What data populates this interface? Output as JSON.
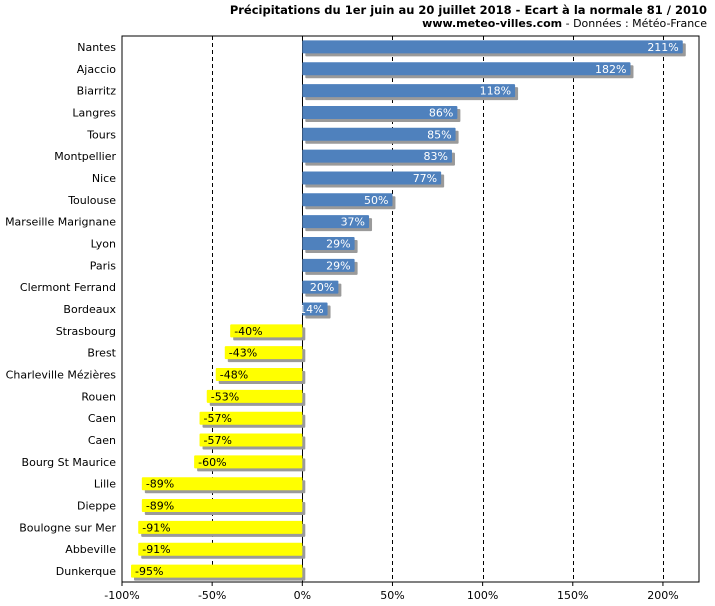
{
  "header": {
    "title": "Précipitations du 1er juin au 20 juillet 2018 - Ecart à la normale 81 / 2010",
    "site": "www.meteo-villes.com",
    "source": " - Données : Météo-France"
  },
  "chart_data": {
    "type": "bar",
    "orientation": "horizontal",
    "categories": [
      "Nantes",
      "Ajaccio",
      "Biarritz",
      "Langres",
      "Tours",
      "Montpellier",
      "Nice",
      "Toulouse",
      "Marseille Marignane",
      "Lyon",
      "Paris",
      "Clermont Ferrand",
      "Bordeaux",
      "Strasbourg",
      "Brest",
      "Charleville Mézières",
      "Rouen",
      "Caen",
      "Caen",
      "Bourg St Maurice",
      "Lille",
      "Dieppe",
      "Boulogne sur Mer",
      "Abbeville",
      "Dunkerque"
    ],
    "values": [
      211,
      182,
      118,
      86,
      85,
      83,
      77,
      50,
      37,
      29,
      29,
      20,
      14,
      -40,
      -43,
      -48,
      -53,
      -57,
      -57,
      -60,
      -89,
      -89,
      -91,
      -91,
      -95
    ],
    "labels": [
      "211%",
      "182%",
      "118%",
      "86%",
      "85%",
      "83%",
      "77%",
      "50%",
      "37%",
      "29%",
      "29%",
      "20%",
      "14%",
      "-40%",
      "-43%",
      "-48%",
      "-53%",
      "-57%",
      "-57%",
      "-60%",
      "-89%",
      "-89%",
      "-91%",
      "-91%",
      "-95%"
    ],
    "xticks": [
      "-100%",
      "-50%",
      "0%",
      "50%",
      "100%",
      "150%",
      "200%"
    ],
    "xtick_values": [
      -100,
      -50,
      0,
      50,
      100,
      150,
      200
    ],
    "xlim": [
      -100,
      220
    ],
    "grid": true,
    "colors": {
      "positive": "#4f81bd",
      "negative": "#ffff00",
      "shadow": "#9a9a9a"
    }
  }
}
